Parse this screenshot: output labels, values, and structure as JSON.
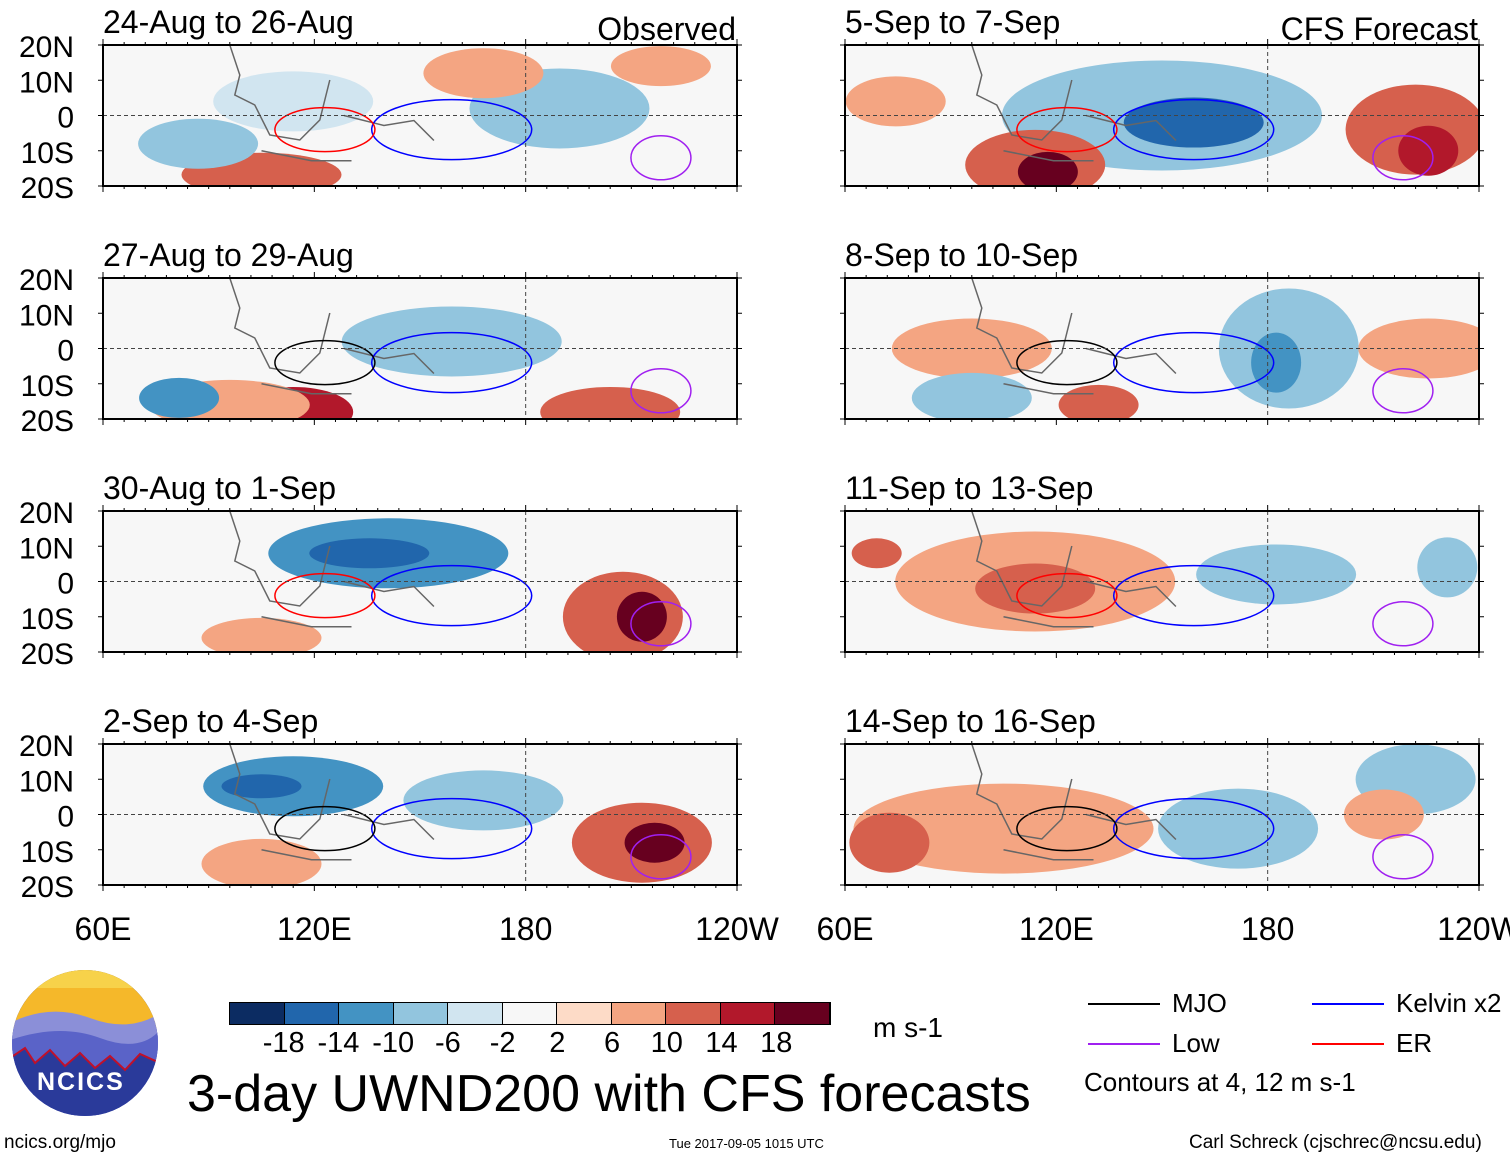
{
  "chart_data": {
    "type": "heatmap",
    "title": "3-day UWND200 with CFS forecasts",
    "units": "m s-1",
    "left_column_label": "Observed",
    "right_column_label": "CFS Forecast",
    "lat_ticks": [
      "20N",
      "10N",
      "0",
      "10S",
      "20S"
    ],
    "lon_ticks": [
      "60E",
      "120E",
      "180",
      "120W"
    ],
    "panels": [
      {
        "title": "24-Aug to 26-Aug",
        "column": "left"
      },
      {
        "title": "27-Aug to 29-Aug",
        "column": "left"
      },
      {
        "title": "30-Aug to 1-Sep",
        "column": "left"
      },
      {
        "title": "2-Sep to 4-Sep",
        "column": "left"
      },
      {
        "title": "5-Sep to 7-Sep",
        "column": "right"
      },
      {
        "title": "8-Sep to 10-Sep",
        "column": "right"
      },
      {
        "title": "11-Sep to 13-Sep",
        "column": "right"
      },
      {
        "title": "14-Sep to 16-Sep",
        "column": "right"
      }
    ],
    "colorbar": {
      "levels": [
        "-18",
        "-14",
        "-10",
        "-6",
        "-2",
        "2",
        "6",
        "10",
        "14",
        "18"
      ],
      "colors": [
        "#0c2c62",
        "#2166ac",
        "#4393c3",
        "#92c5de",
        "#d1e5f0",
        "#f7f7f7",
        "#fddbc7",
        "#f4a582",
        "#d6604d",
        "#b2182b",
        "#67001f"
      ]
    },
    "legend": [
      {
        "label": "MJO",
        "color": "#000000"
      },
      {
        "label": "Kelvin x2",
        "color": "#0000ff"
      },
      {
        "label": "Low",
        "color": "#a020f0"
      },
      {
        "label": "ER",
        "color": "#ff0000"
      }
    ],
    "contour_note": "Contours at 4, 12 m s-1"
  },
  "footer": {
    "logo_text": "NCICS",
    "website": "ncics.org/mjo",
    "timestamp": "Tue 2017-09-05 1015 UTC",
    "author": "Carl Schreck (cjschrec@ncsu.edu)"
  }
}
